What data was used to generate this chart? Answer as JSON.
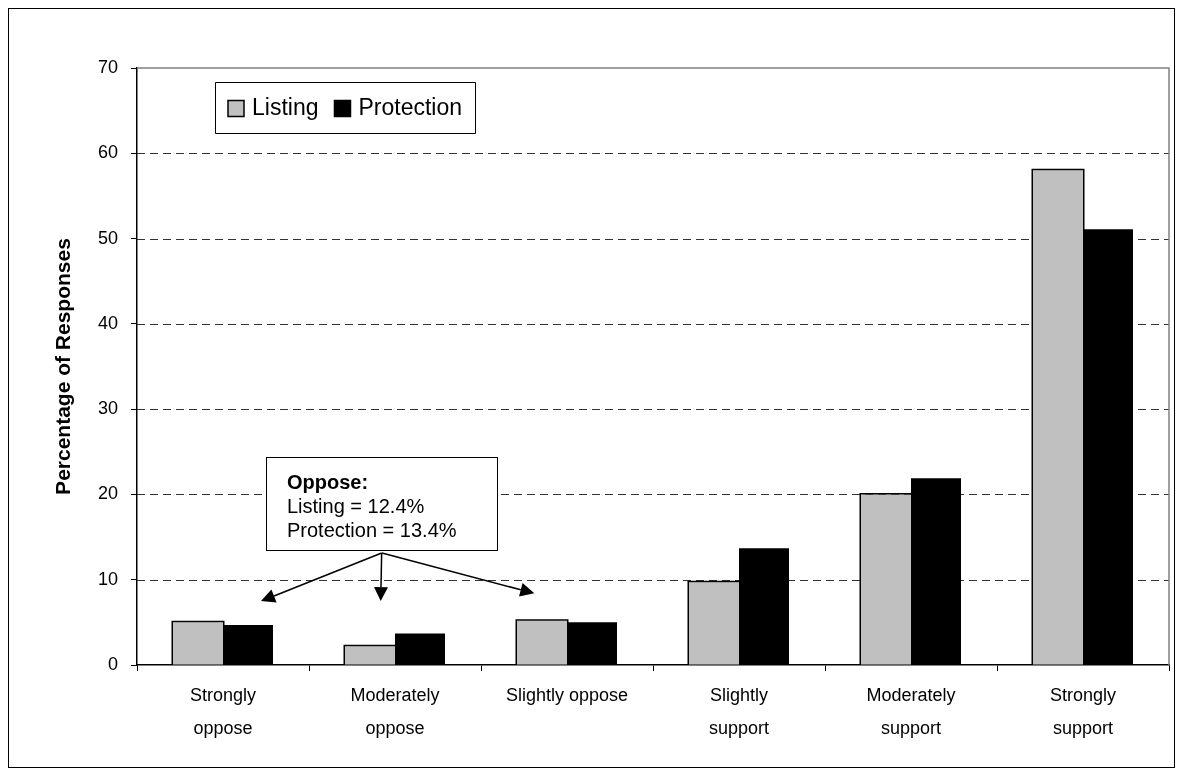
{
  "chart_data": {
    "type": "bar",
    "categories": [
      "Strongly\noppose",
      "Moderately\noppose",
      "Slightly oppose",
      "Slightly\nsupport",
      "Moderately\nsupport",
      "Strongly\nsupport"
    ],
    "series": [
      {
        "name": "Listing",
        "color": "#c0c0c0",
        "values": [
          5.0,
          2.2,
          5.2,
          9.7,
          20.0,
          58.0
        ]
      },
      {
        "name": "Protection",
        "color": "#000000",
        "values": [
          4.7,
          3.7,
          5.0,
          13.7,
          21.9,
          51.1
        ]
      }
    ],
    "ylabel": "Percentage of Responses",
    "ylim": [
      0,
      70
    ],
    "yticks": [
      0,
      10,
      20,
      30,
      40,
      50,
      60,
      70
    ],
    "grid": "y",
    "legend": "top left",
    "annotations": [
      "Oppose:\nListing = 12.4%\nProtection = 13.4%"
    ]
  }
}
